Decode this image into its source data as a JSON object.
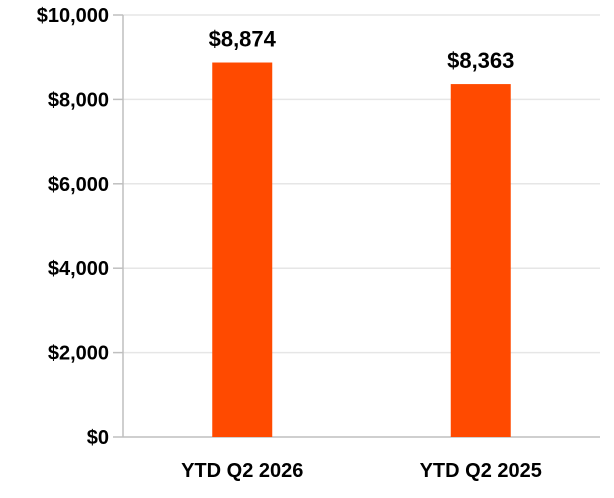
{
  "chart_data": {
    "type": "bar",
    "categories": [
      "YTD Q2 2026",
      "YTD Q2 2025"
    ],
    "values": [
      8874,
      8363
    ],
    "data_labels": [
      "$8,874",
      "$8,363"
    ],
    "title": "",
    "xlabel": "",
    "ylabel": "",
    "ylim": [
      0,
      10000
    ],
    "yticks": [
      0,
      2000,
      4000,
      6000,
      8000,
      10000
    ],
    "ytick_labels": [
      "$0",
      "$2,000",
      "$4,000",
      "$6,000",
      "$8,000",
      "$10,000"
    ],
    "grid": true,
    "legend": "none",
    "colors": {
      "bar": "#FF4A00",
      "grid": "#E6E6E6",
      "axis": "#BFBFBF",
      "text": "#000000"
    }
  }
}
